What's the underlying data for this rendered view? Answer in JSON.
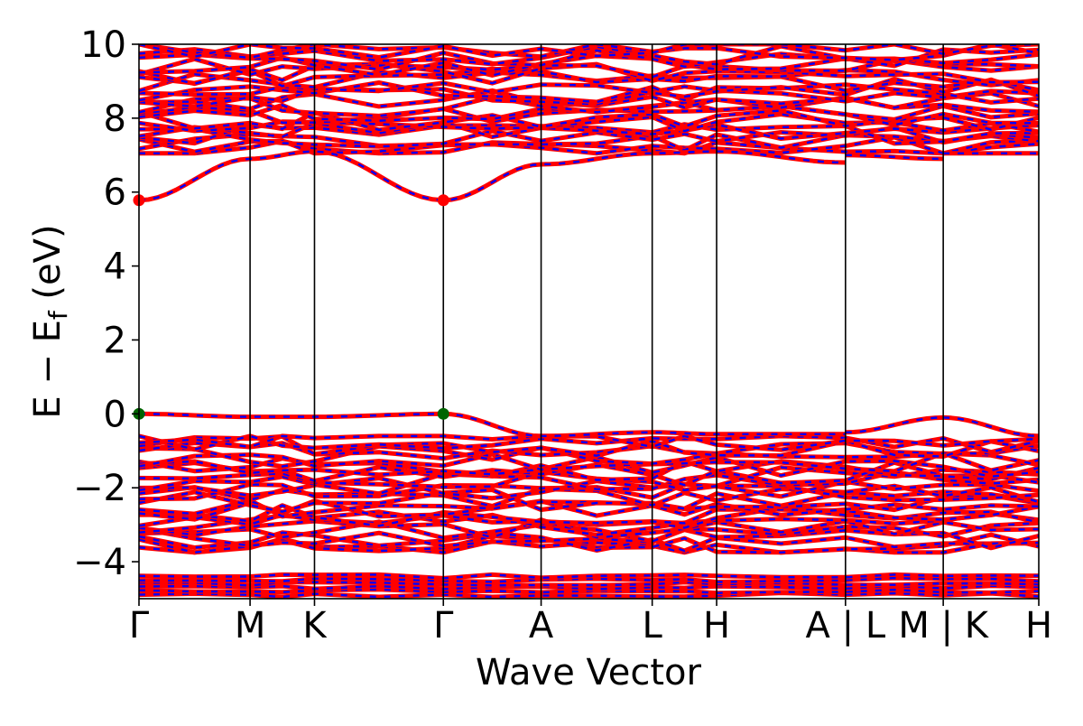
{
  "chart_data": {
    "type": "line",
    "title": "",
    "xlabel": "Wave Vector",
    "ylabel_parts": {
      "main": "E − E",
      "sub": "f",
      "unit": " (eV)"
    },
    "ylim": [
      -5,
      10
    ],
    "yticks": [
      -4,
      -2,
      0,
      2,
      4,
      6,
      8,
      10
    ],
    "ytick_labels": [
      "−4",
      "−2",
      "0",
      "2",
      "4",
      "6",
      "8",
      "10"
    ],
    "kpath": [
      {
        "label": "Γ",
        "pos": 0.0
      },
      {
        "label": "M",
        "pos": 1.0
      },
      {
        "label": "K",
        "pos": 1.58
      },
      {
        "label": "Γ",
        "pos": 2.74
      },
      {
        "label": "A",
        "pos": 3.62
      },
      {
        "label": "L",
        "pos": 4.62
      },
      {
        "label": "H",
        "pos": 5.2
      },
      {
        "label": "A | L",
        "pos": 6.36
      },
      {
        "label": "M | K",
        "pos": 7.24
      },
      {
        "label": "H",
        "pos": 8.1
      }
    ],
    "xlim": [
      0,
      8.1
    ],
    "series_colors": {
      "up": "#ff0000",
      "down": "#0000ff"
    },
    "marker_colors": {
      "cbm": "#ff0000",
      "vbm": "#006400"
    },
    "band_edges": {
      "cbm": {
        "energy": 5.78,
        "k_positions": [
          0.0,
          2.74
        ]
      },
      "vbm": {
        "energy": 0.0,
        "k_positions": [
          0.0,
          2.74
        ]
      }
    },
    "bands": [
      {
        "band": "conduction-lowest",
        "points": [
          [
            0,
            5.78
          ],
          [
            1.0,
            6.9
          ],
          [
            1.58,
            7.1
          ],
          [
            2.74,
            5.78
          ],
          [
            3.62,
            6.75
          ],
          [
            4.62,
            7.05
          ],
          [
            5.2,
            7.1
          ],
          [
            6.36,
            6.8
          ]
        ]
      },
      {
        "band": "conduction-lowest-segment",
        "points": [
          [
            6.36,
            7.0
          ],
          [
            7.24,
            6.9
          ]
        ]
      },
      {
        "band": "conduction-lowest-segment",
        "points": [
          [
            7.24,
            7.05
          ],
          [
            8.1,
            7.05
          ]
        ]
      },
      {
        "band": "valence-top",
        "points": [
          [
            0,
            0.0
          ],
          [
            1.0,
            -0.08
          ],
          [
            1.58,
            -0.08
          ],
          [
            2.74,
            0.0
          ],
          [
            3.62,
            -0.6
          ],
          [
            4.62,
            -0.5
          ],
          [
            5.2,
            -0.55
          ],
          [
            6.36,
            -0.55
          ]
        ]
      },
      {
        "band": "valence-top-segment",
        "points": [
          [
            6.36,
            -0.5
          ],
          [
            7.24,
            -0.1
          ]
        ]
      },
      {
        "band": "valence-top-segment",
        "points": [
          [
            7.24,
            -0.1
          ],
          [
            8.1,
            -0.6
          ]
        ]
      }
    ],
    "band_groups": [
      {
        "group": "valence",
        "emin": -3.75,
        "emax": -0.6,
        "count": 26
      },
      {
        "group": "deep-valence",
        "emin": -4.95,
        "emax": -4.35,
        "count": 6
      },
      {
        "group": "conduction",
        "emin": 7.05,
        "emax": 10.0,
        "count": 24
      }
    ]
  }
}
